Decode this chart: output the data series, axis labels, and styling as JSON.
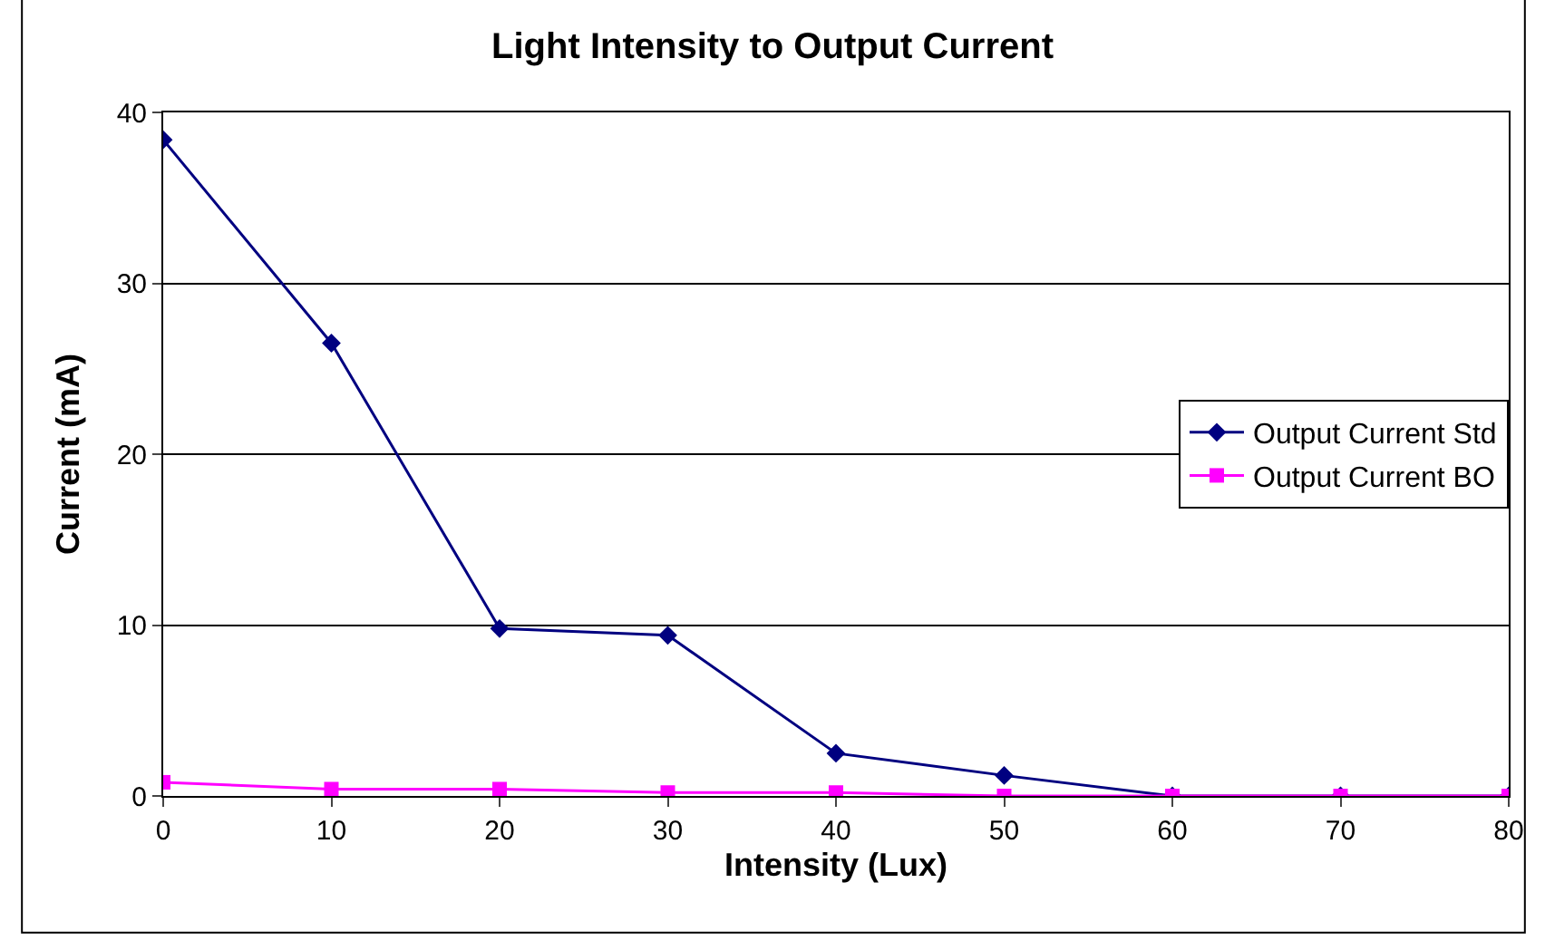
{
  "chart_data": {
    "type": "line",
    "title": "Light Intensity to Output Current",
    "xlabel": "Intensity (Lux)",
    "ylabel": "Current (mA)",
    "x": [
      0,
      10,
      20,
      30,
      40,
      50,
      60,
      70,
      80
    ],
    "series": [
      {
        "name": "Output Current Std",
        "color": "#000080",
        "marker": "diamond",
        "values": [
          38.4,
          26.5,
          9.8,
          9.4,
          2.5,
          1.2,
          0,
          0,
          0
        ]
      },
      {
        "name": "Output Current BO",
        "color": "#ff00ff",
        "marker": "square",
        "values": [
          0.8,
          0.4,
          0.4,
          0.2,
          0.2,
          0,
          0,
          0,
          0
        ]
      }
    ],
    "xlim": [
      0,
      80
    ],
    "xticks": [
      0,
      10,
      20,
      30,
      40,
      50,
      60,
      70,
      80
    ],
    "ylim": [
      0,
      40
    ],
    "yticks": [
      0,
      10,
      20,
      30,
      40
    ],
    "grid": "y",
    "legend": "right",
    "line_style": "solid"
  }
}
